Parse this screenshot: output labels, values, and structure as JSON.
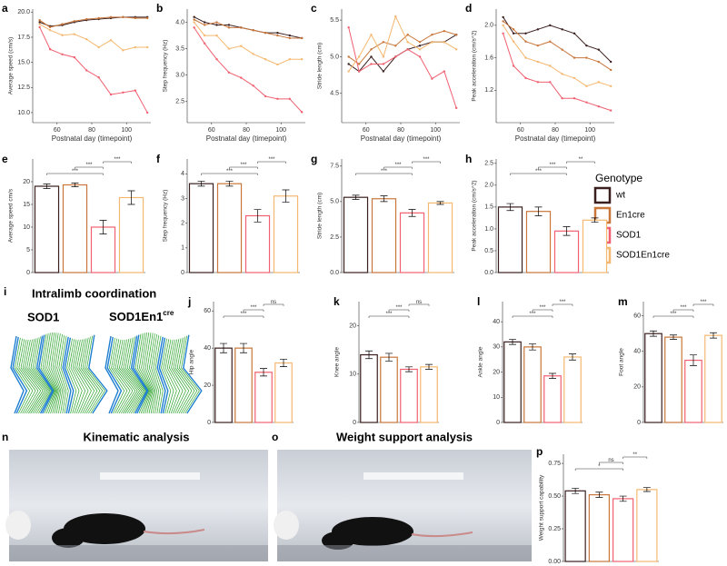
{
  "genotypes": {
    "title": "Genotype",
    "names": [
      "wt",
      "En1cre",
      "SOD1",
      "SOD1En1cre"
    ],
    "colors": [
      "#3b1f1f",
      "#c8763a",
      "#f06070",
      "#f5b870"
    ]
  },
  "panel_i": {
    "letter": "i",
    "title": "Intralimb coordination",
    "left": "SOD1",
    "right": "SOD1En1",
    "right_sup": "cre"
  },
  "panel_n": {
    "letter": "n",
    "title": "Kinematic analysis"
  },
  "panel_o": {
    "letter": "o",
    "title": "Weight support analysis"
  },
  "chart_data": [
    {
      "type": "line",
      "letter": "a",
      "ylabel": "Average speed (cm/s)",
      "xlabel": "Postnatal day (timepoint)",
      "x": [
        50,
        56,
        63,
        70,
        77,
        84,
        91,
        98,
        105,
        112
      ],
      "xlim": [
        46,
        114
      ],
      "xticks": [
        60,
        80,
        100
      ],
      "ylim": [
        9,
        20.3
      ],
      "yticks": [
        {
          "value": 10,
          "label": "10.0"
        },
        12.5,
        {
          "value": 15,
          "label": "15.0"
        },
        17.5,
        {
          "value": 20,
          "label": "20.0"
        }
      ],
      "series": [
        {
          "values": [
            19,
            18.6,
            18.7,
            19,
            19.2,
            19.3,
            19.4,
            19.5,
            19.5,
            19.5
          ]
        },
        {
          "values": [
            19.2,
            18.5,
            18.8,
            19.1,
            19.3,
            19.4,
            19.5,
            19.5,
            19.4,
            19.4
          ]
        },
        {
          "values": [
            18.5,
            16.3,
            15.8,
            15.5,
            14.2,
            13.5,
            11.8,
            12,
            12.2,
            10
          ]
        },
        {
          "values": [
            18.8,
            18.2,
            17.7,
            17.8,
            17.3,
            16.5,
            17.2,
            16.2,
            16.5,
            16.5
          ]
        }
      ]
    },
    {
      "type": "line",
      "letter": "b",
      "ylabel": "Step frequency (Hz)",
      "xlabel": "Postnatal day (timepoint)",
      "x": [
        50,
        56,
        63,
        70,
        77,
        84,
        91,
        98,
        105,
        112
      ],
      "xlim": [
        46,
        114
      ],
      "xticks": [
        60,
        80,
        100
      ],
      "ylim": [
        2.1,
        4.25
      ],
      "yticks": [
        2.5,
        {
          "value": 3,
          "label": "3.0"
        },
        3.5,
        {
          "value": 4,
          "label": "4.0"
        }
      ],
      "series": [
        {
          "values": [
            4.1,
            4.0,
            3.95,
            3.95,
            3.9,
            3.85,
            3.8,
            3.8,
            3.75,
            3.7
          ]
        },
        {
          "values": [
            4.05,
            3.95,
            4.0,
            3.9,
            3.9,
            3.85,
            3.8,
            3.75,
            3.7,
            3.7
          ]
        },
        {
          "values": [
            3.9,
            3.6,
            3.3,
            3.05,
            2.95,
            2.8,
            2.6,
            2.55,
            2.55,
            2.3
          ]
        },
        {
          "values": [
            4.0,
            3.75,
            3.75,
            3.5,
            3.55,
            3.4,
            3.3,
            3.2,
            3.3,
            3.3
          ]
        }
      ]
    },
    {
      "type": "line",
      "letter": "c",
      "ylabel": "Stride length (cm)",
      "xlabel": "Postnatal day (timepoint)",
      "x": [
        50,
        56,
        63,
        70,
        77,
        84,
        91,
        98,
        105,
        112
      ],
      "xlim": [
        46,
        114
      ],
      "xticks": [
        60,
        80,
        100
      ],
      "ylim": [
        4.1,
        5.65
      ],
      "yticks": [
        4.5,
        {
          "value": 5,
          "label": "5.0"
        },
        5.5
      ],
      "series": [
        {
          "values": [
            4.9,
            4.8,
            5.0,
            4.8,
            5.0,
            5.1,
            5.15,
            5.2,
            5.2,
            5.3
          ]
        },
        {
          "values": [
            5.0,
            4.9,
            5.1,
            5.2,
            5.15,
            5.3,
            5.2,
            5.3,
            5.35,
            5.3
          ]
        },
        {
          "values": [
            5.4,
            4.8,
            4.9,
            4.9,
            5.0,
            5.1,
            5.0,
            4.7,
            4.8,
            4.3
          ]
        },
        {
          "values": [
            4.8,
            5.0,
            5.3,
            5.0,
            5.55,
            5.2,
            5.1,
            5.2,
            5.2,
            5.1
          ]
        }
      ]
    },
    {
      "type": "line",
      "letter": "d",
      "ylabel": "Peak acceleration (cm/s^2)",
      "xlabel": "Postnatal day (timepoint)",
      "x": [
        50,
        56,
        63,
        70,
        77,
        84,
        91,
        98,
        105,
        112
      ],
      "xlim": [
        46,
        114
      ],
      "xticks": [
        60,
        80,
        100
      ],
      "ylim": [
        0.8,
        2.2
      ],
      "yticks": [
        1.2,
        1.6,
        {
          "value": 2,
          "label": "2.0"
        }
      ],
      "series": [
        {
          "values": [
            2.1,
            1.9,
            1.9,
            1.95,
            2.0,
            1.95,
            1.9,
            1.75,
            1.7,
            1.55
          ]
        },
        {
          "values": [
            2.05,
            1.95,
            1.8,
            1.75,
            1.8,
            1.7,
            1.6,
            1.6,
            1.55,
            1.45
          ]
        },
        {
          "values": [
            1.9,
            1.5,
            1.35,
            1.3,
            1.3,
            1.1,
            1.1,
            1.05,
            1.0,
            0.95
          ]
        },
        {
          "values": [
            2.0,
            1.8,
            1.6,
            1.55,
            1.5,
            1.4,
            1.35,
            1.25,
            1.3,
            1.25
          ]
        }
      ]
    },
    {
      "type": "bar",
      "letter": "e",
      "ylabel": "Average speed cm/s",
      "ylim": [
        0,
        25
      ],
      "yticks": [
        0,
        5,
        10,
        15,
        20
      ],
      "values": [
        19,
        19.3,
        10,
        16.5
      ],
      "errors": [
        0.5,
        0.4,
        1.5,
        1.5
      ],
      "brackets": [
        "***",
        "***",
        "***"
      ]
    },
    {
      "type": "bar",
      "letter": "f",
      "ylabel": "Step frequency (Hz)",
      "ylim": [
        0,
        4.6
      ],
      "yticks": [
        0,
        1,
        2,
        3,
        4
      ],
      "values": [
        3.6,
        3.6,
        2.3,
        3.1
      ],
      "errors": [
        0.1,
        0.1,
        0.25,
        0.25
      ],
      "brackets": [
        "***",
        "***",
        "***"
      ]
    },
    {
      "type": "bar",
      "letter": "g",
      "ylabel": "Stride length (cm)",
      "ylim": [
        0,
        8
      ],
      "yticks": [
        {
          "value": 0,
          "label": "0.0"
        },
        2.5,
        {
          "value": 5,
          "label": "5.0"
        },
        7.5
      ],
      "values": [
        5.3,
        5.2,
        4.2,
        4.9
      ],
      "errors": [
        0.15,
        0.2,
        0.25,
        0.1
      ],
      "brackets": [
        "***",
        "***",
        "***"
      ]
    },
    {
      "type": "bar",
      "letter": "h",
      "ylabel": "Peak acceleration (cm/s^2)",
      "ylim": [
        0,
        2.6
      ],
      "yticks": [
        {
          "value": 0,
          "label": "0.0"
        },
        0.5,
        {
          "value": 1,
          "label": "1.0"
        },
        1.5,
        {
          "value": 2,
          "label": "2.0"
        },
        2.5
      ],
      "values": [
        1.5,
        1.4,
        0.95,
        1.2
      ],
      "errors": [
        0.08,
        0.1,
        0.1,
        0.05
      ],
      "brackets": [
        "***",
        "***",
        "**"
      ]
    },
    {
      "type": "bar",
      "letter": "j",
      "ylabel": "Hip angle",
      "ylim": [
        0,
        65
      ],
      "yticks": [
        0,
        20,
        40,
        60
      ],
      "values": [
        40,
        40,
        27,
        32
      ],
      "errors": [
        2.5,
        2.5,
        2,
        2
      ],
      "brackets": [
        "***",
        "***",
        "ns"
      ]
    },
    {
      "type": "bar",
      "letter": "k",
      "ylabel": "Knee angle",
      "ylim": [
        0,
        25
      ],
      "yticks": [
        0,
        10,
        20
      ],
      "values": [
        14,
        13.5,
        11,
        11.5
      ],
      "errors": [
        0.8,
        0.8,
        0.5,
        0.5
      ],
      "brackets": [
        "***",
        "***",
        "ns"
      ]
    },
    {
      "type": "bar",
      "letter": "l",
      "ylabel": "Ankle angle",
      "ylim": [
        0,
        48
      ],
      "yticks": [
        0,
        10,
        20,
        30,
        40
      ],
      "values": [
        32,
        30,
        18.5,
        26
      ],
      "errors": [
        1,
        1.2,
        1,
        1.2
      ],
      "brackets": [
        "***",
        "***",
        "***"
      ]
    },
    {
      "type": "bar",
      "letter": "m",
      "ylabel": "Foot angle",
      "ylim": [
        0,
        68
      ],
      "yticks": [
        0,
        20,
        40,
        60
      ],
      "values": [
        50,
        48,
        35,
        49
      ],
      "errors": [
        1.5,
        1.2,
        3,
        1.5
      ],
      "brackets": [
        "***",
        "***",
        "***"
      ]
    },
    {
      "type": "bar",
      "letter": "p",
      "ylabel": "Weight support capability",
      "ylim": [
        0,
        0.82
      ],
      "yticks": [
        {
          "value": 0,
          "label": "0.00"
        },
        0.25,
        {
          "value": 0.5,
          "label": "0.50"
        },
        0.75
      ],
      "values": [
        0.54,
        0.51,
        0.48,
        0.55
      ],
      "errors": [
        0.02,
        0.02,
        0.02,
        0.015
      ],
      "brackets": [
        "*",
        "ns",
        "**"
      ]
    }
  ]
}
